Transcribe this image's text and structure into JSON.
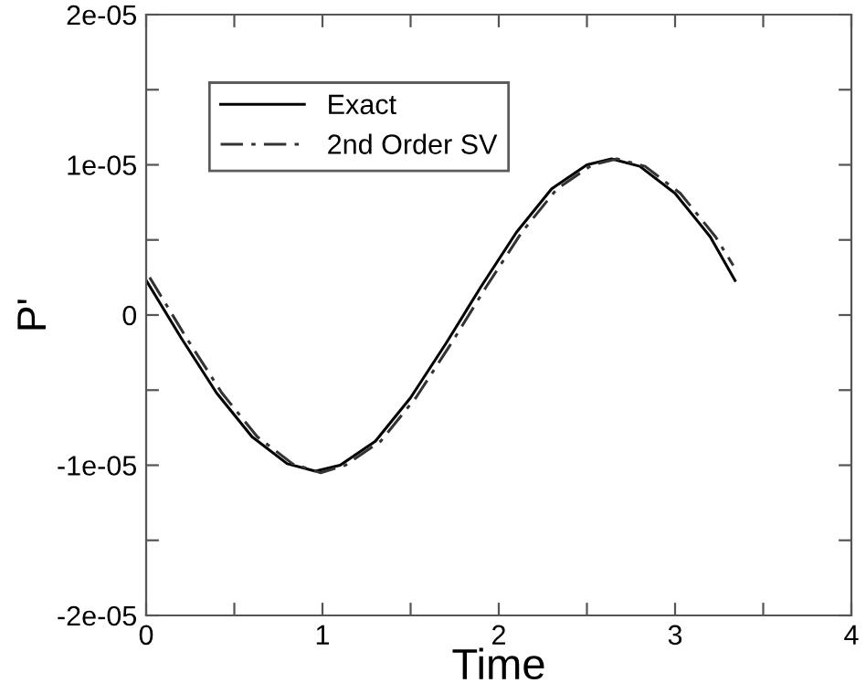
{
  "chart_data": {
    "type": "line",
    "xlabel": "Time",
    "ylabel": "P'",
    "xlim": [
      0,
      4
    ],
    "ylim": [
      -2e-05,
      2e-05
    ],
    "xticks": [
      0,
      {
        "value": 0.5,
        "label": null
      },
      1,
      {
        "value": 1.5,
        "label": null
      },
      2,
      {
        "value": 2.5,
        "label": null
      },
      3,
      {
        "value": 3.5,
        "label": null
      },
      4
    ],
    "yticks": [
      {
        "value": -2e-05,
        "label": "-2e-05"
      },
      {
        "value": -1.5e-05,
        "label": null
      },
      {
        "value": -1e-05,
        "label": "-1e-05"
      },
      {
        "value": -5e-06,
        "label": null
      },
      0,
      {
        "value": 5e-06,
        "label": null
      },
      {
        "value": 1e-05,
        "label": "1e-05"
      },
      {
        "value": 1.5e-05,
        "label": null
      },
      {
        "value": 2e-05,
        "label": "2e-05"
      }
    ],
    "grid": false,
    "legend": "top left",
    "series": [
      {
        "name": "Exact",
        "color": "#000000",
        "line_style": "solid",
        "x": [
          0,
          0.2,
          0.4,
          0.6,
          0.8,
          0.96,
          1.1,
          1.3,
          1.5,
          1.7,
          1.9,
          2.1,
          2.3,
          2.5,
          2.64,
          2.8,
          3.0,
          3.2,
          3.34
        ],
        "values": [
          2.3e-06,
          -1.55e-06,
          -5.2e-06,
          -8.1e-06,
          -9.9e-06,
          -1.04e-05,
          -1e-05,
          -8.4e-06,
          -5.5e-06,
          -1.9e-06,
          1.9e-06,
          5.5e-06,
          8.4e-06,
          1e-05,
          1.04e-05,
          9.9e-06,
          8.1e-06,
          5.2e-06,
          2.3e-06
        ]
      },
      {
        "name": "2nd Order SV",
        "color": "#333333",
        "line_style": "dashdot",
        "x": [
          0.02,
          0.23,
          0.43,
          0.63,
          0.83,
          0.99,
          1.13,
          1.33,
          1.53,
          1.73,
          1.93,
          2.13,
          2.33,
          2.53,
          2.67,
          2.83,
          3.03,
          3.23,
          3.33
        ],
        "values": [
          2.5e-06,
          -1.55e-06,
          -5.2e-06,
          -8.1e-06,
          -9.9e-06,
          -1.05e-05,
          -1e-05,
          -8.4e-06,
          -5.5e-06,
          -1.9e-06,
          1.9e-06,
          5.5e-06,
          8.4e-06,
          1e-05,
          1.04e-05,
          9.9e-06,
          8.1e-06,
          5.2e-06,
          3.3e-06
        ]
      }
    ]
  }
}
